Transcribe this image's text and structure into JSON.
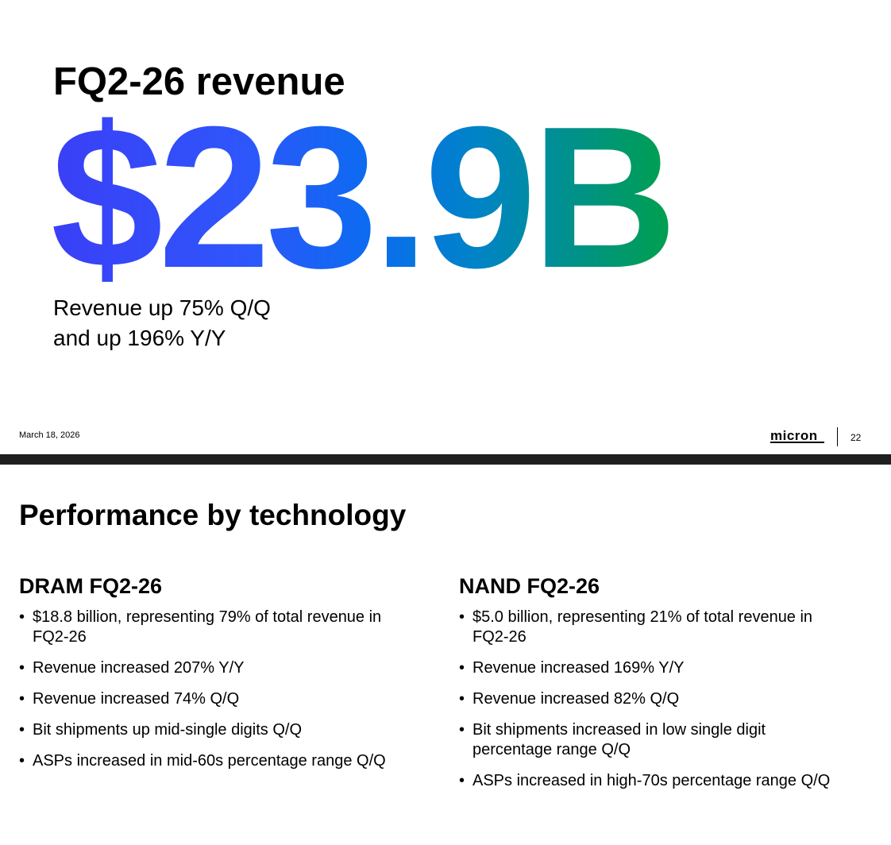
{
  "slide1": {
    "title": "FQ2-26 revenue",
    "big_value": "$23.9B",
    "subline1": "Revenue up 75% Q/Q",
    "subline2": "and up 196% Y/Y",
    "date": "March 18, 2026",
    "logo": "micron",
    "page_number": "22",
    "gradient_colors": [
      "#3a3ff6",
      "#0b6cf0",
      "#00a04c"
    ]
  },
  "slide2": {
    "title": "Performance by technology",
    "dram": {
      "heading": "DRAM FQ2-26",
      "bullets": [
        "$18.8 billion, representing 79% of total revenue in FQ2-26",
        "Revenue increased 207% Y/Y",
        "Revenue increased 74% Q/Q",
        "Bit shipments up mid-single digits Q/Q",
        "ASPs increased in mid-60s percentage range Q/Q"
      ]
    },
    "nand": {
      "heading": "NAND FQ2-26",
      "bullets": [
        "$5.0 billion, representing 21% of total revenue in FQ2-26",
        "Revenue increased 169% Y/Y",
        "Revenue increased 82% Q/Q",
        "Bit shipments increased in low single digit percentage range Q/Q",
        "ASPs increased in high-70s percentage range Q/Q"
      ]
    }
  }
}
